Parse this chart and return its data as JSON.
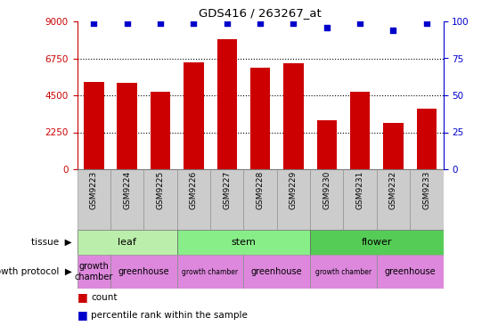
{
  "title": "GDS416 / 263267_at",
  "samples": [
    "GSM9223",
    "GSM9224",
    "GSM9225",
    "GSM9226",
    "GSM9227",
    "GSM9228",
    "GSM9229",
    "GSM9230",
    "GSM9231",
    "GSM9232",
    "GSM9233"
  ],
  "counts": [
    5300,
    5250,
    4700,
    6500,
    7900,
    6200,
    6450,
    3000,
    4700,
    2800,
    3700
  ],
  "percentiles": [
    99,
    99,
    99,
    99,
    99,
    99,
    99,
    96,
    99,
    94,
    99
  ],
  "bar_color": "#cc0000",
  "dot_color": "#0000cc",
  "ylim_left": [
    0,
    9000
  ],
  "ylim_right": [
    0,
    100
  ],
  "yticks_left": [
    0,
    2250,
    4500,
    6750,
    9000
  ],
  "yticks_right": [
    0,
    25,
    50,
    75,
    100
  ],
  "grid_lines": [
    2250,
    4500,
    6750
  ],
  "tissue_groups": [
    {
      "label": "leaf",
      "start": 0,
      "end": 3
    },
    {
      "label": "stem",
      "start": 3,
      "end": 7
    },
    {
      "label": "flower",
      "start": 7,
      "end": 11
    }
  ],
  "tissue_colors": {
    "leaf": "#bbeeaa",
    "stem": "#88ee88",
    "flower": "#55cc55"
  },
  "protocol_groups": [
    {
      "label": "growth\nchamber",
      "start": 0,
      "end": 1
    },
    {
      "label": "greenhouse",
      "start": 1,
      "end": 3
    },
    {
      "label": "growth chamber",
      "start": 3,
      "end": 5
    },
    {
      "label": "greenhouse",
      "start": 5,
      "end": 7
    },
    {
      "label": "growth chamber",
      "start": 7,
      "end": 9
    },
    {
      "label": "greenhouse",
      "start": 9,
      "end": 11
    }
  ],
  "protocol_color": "#dd88dd",
  "xticklabels_bg": "#cccccc",
  "tissue_row_label": "tissue",
  "protocol_row_label": "growth protocol",
  "legend_count_label": "count",
  "legend_pct_label": "percentile rank within the sample",
  "bg_color": "#ffffff",
  "axis_color_left": "#cc0000",
  "axis_color_right": "#0000cc"
}
